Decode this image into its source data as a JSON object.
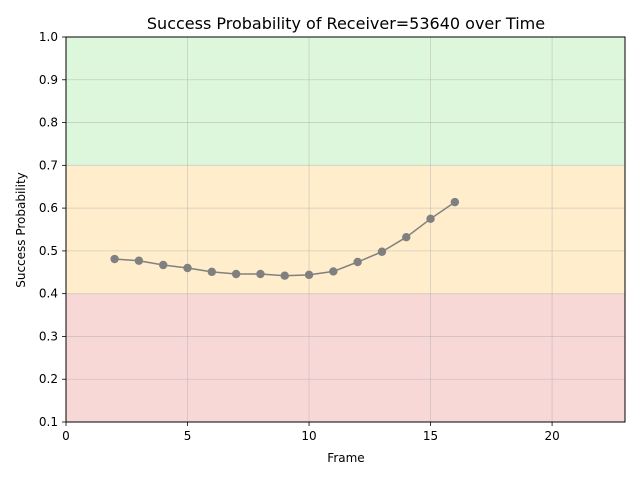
{
  "chart_data": {
    "type": "line",
    "title": "Success Probability of Receiver=53640 over Time",
    "xlabel": "Frame",
    "ylabel": "Success Probability",
    "xlim": [
      0,
      23
    ],
    "ylim": [
      0.1,
      1.0
    ],
    "xticks": [
      0,
      5,
      10,
      15,
      20
    ],
    "yticks": [
      0.1,
      0.2,
      0.3,
      0.4,
      0.5,
      0.6,
      0.7,
      0.8,
      0.9,
      1.0
    ],
    "xtick_labels": [
      "0",
      "5",
      "10",
      "15",
      "20"
    ],
    "ytick_labels": [
      "0.1",
      "0.2",
      "0.3",
      "0.4",
      "0.5",
      "0.6",
      "0.7",
      "0.8",
      "0.9",
      "1.0"
    ],
    "grid": true,
    "bands": [
      {
        "from": 0.1,
        "to": 0.4,
        "color": "#f8d7d7"
      },
      {
        "from": 0.4,
        "to": 0.7,
        "color": "#ffedcc"
      },
      {
        "from": 0.7,
        "to": 1.0,
        "color": "#dcf7dc"
      }
    ],
    "series": [
      {
        "color": "#808080",
        "x": [
          2,
          3,
          4,
          5,
          6,
          7,
          8,
          9,
          10,
          11,
          12,
          13,
          14,
          15,
          16
        ],
        "y": [
          0.481,
          0.477,
          0.467,
          0.46,
          0.451,
          0.446,
          0.446,
          0.442,
          0.444,
          0.452,
          0.474,
          0.498,
          0.532,
          0.575,
          0.614
        ]
      }
    ]
  }
}
